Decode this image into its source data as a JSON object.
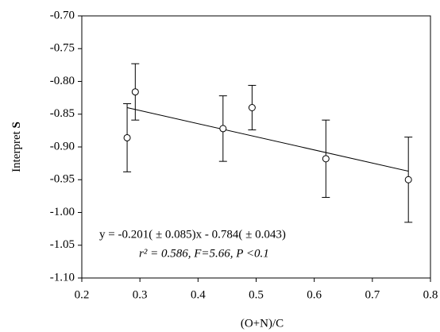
{
  "chart_data": {
    "type": "scatter",
    "x_label": "(O+N)/C",
    "y_label": "Interpret",
    "y_label_symbol": "S",
    "annotations": [
      "y = -0.201( ± 0.085)x - 0.784( ± 0.043)",
      "r² = 0.586, F=5.66, P <0.1"
    ],
    "x": [
      0.278,
      0.292,
      0.443,
      0.493,
      0.62,
      0.762
    ],
    "series": [
      {
        "color": "#000000",
        "values": [
          -0.886,
          -0.816,
          -0.872,
          -0.84,
          -0.918,
          -0.95
        ],
        "errors": [
          0.052,
          0.043,
          0.05,
          0.034,
          0.059,
          0.065
        ]
      }
    ],
    "fit_line": {
      "x": [
        0.278,
        0.762
      ],
      "y": [
        -0.84,
        -0.937
      ],
      "color": "#000000"
    },
    "xlim": [
      0.2,
      0.8
    ],
    "ylim": [
      -1.1,
      -0.7
    ],
    "xticks": [
      0.2,
      0.3,
      0.4,
      0.5,
      0.6,
      0.7,
      0.8
    ],
    "yticks": [
      {
        "value": -1.1,
        "label": "-1.10"
      },
      {
        "value": -1.05,
        "label": "-1.05"
      },
      {
        "value": -1.0,
        "label": "-1.00"
      },
      {
        "value": -0.95,
        "label": "-0.95"
      },
      {
        "value": -0.9,
        "label": "-0.90"
      },
      {
        "value": -0.85,
        "label": "-0.85"
      },
      {
        "value": -0.8,
        "label": "-0.80"
      },
      {
        "value": -0.75,
        "label": "-0.75"
      },
      {
        "value": -0.7,
        "label": "-0.70"
      }
    ],
    "grid": false
  }
}
